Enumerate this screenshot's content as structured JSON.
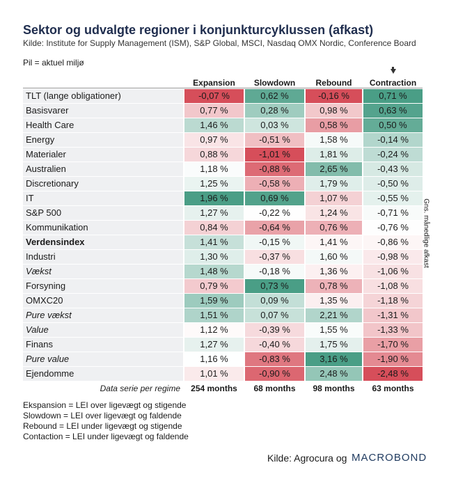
{
  "header": {
    "title": "Sektor og udvalgte regioner i konjunkturcyklussen (afkast)",
    "subtitle": "Kilde: Institute for Supply Management (ISM), S&P Global, MSCI, Nasdaq OMX Nordic, Conference Board",
    "arrow_note": "Pil = aktuel miljø"
  },
  "table": {
    "columns": [
      "Expansion",
      "Slowdown",
      "Rebound",
      "Contraction"
    ],
    "rows": [
      {
        "label": "TLT (lange obligationer)",
        "values": [
          "-0,07 %",
          "0,62 %",
          "-0,16 %",
          "0,71 %"
        ]
      },
      {
        "label": "Basisvarer",
        "values": [
          "0,77 %",
          "0,28 %",
          "0,98 %",
          "0,63 %"
        ]
      },
      {
        "label": "Health Care",
        "values": [
          "1,46 %",
          "0,03 %",
          "0,58 %",
          "0,50 %"
        ]
      },
      {
        "label": "Energy",
        "values": [
          "0,97 %",
          "-0,51 %",
          "1,58 %",
          "-0,14 %"
        ]
      },
      {
        "label": "Materialer",
        "values": [
          "0,88 %",
          "-1,01 %",
          "1,81 %",
          "-0,24 %"
        ]
      },
      {
        "label": "Australien",
        "values": [
          "1,18 %",
          "-0,88 %",
          "2,65 %",
          "-0,43 %"
        ]
      },
      {
        "label": "Discretionary",
        "values": [
          "1,25 %",
          "-0,58 %",
          "1,79 %",
          "-0,50 %"
        ]
      },
      {
        "label": "IT",
        "values": [
          "1,96 %",
          "0,69 %",
          "1,07 %",
          "-0,55 %"
        ]
      },
      {
        "label": "S&P 500",
        "values": [
          "1,27 %",
          "-0,22 %",
          "1,24 %",
          "-0,71 %"
        ]
      },
      {
        "label": "Kommunikation",
        "values": [
          "0,84 %",
          "-0,64 %",
          "0,76 %",
          "-0,76 %"
        ]
      },
      {
        "label": "Verdensindex",
        "style": "bold",
        "values": [
          "1,41 %",
          "-0,15 %",
          "1,41 %",
          "-0,86 %"
        ]
      },
      {
        "label": "Industri",
        "values": [
          "1,30 %",
          "-0,37 %",
          "1,60 %",
          "-0,98 %"
        ]
      },
      {
        "label": "Vækst",
        "style": "italic",
        "values": [
          "1,48 %",
          "-0,18 %",
          "1,36 %",
          "-1,06 %"
        ]
      },
      {
        "label": "Forsyning",
        "values": [
          "0,79 %",
          "0,73 %",
          "0,78 %",
          "-1,08 %"
        ]
      },
      {
        "label": "OMXC20",
        "values": [
          "1,59 %",
          "0,09 %",
          "1,35 %",
          "-1,18 %"
        ]
      },
      {
        "label": "Pure vækst",
        "style": "italic",
        "values": [
          "1,51 %",
          "0,07 %",
          "2,21 %",
          "-1,31 %"
        ]
      },
      {
        "label": "Value",
        "style": "italic",
        "values": [
          "1,12 %",
          "-0,39 %",
          "1,55 %",
          "-1,33 %"
        ]
      },
      {
        "label": "Finans",
        "values": [
          "1,27 %",
          "-0,40 %",
          "1,75 %",
          "-1,70 %"
        ]
      },
      {
        "label": "Pure value",
        "style": "italic",
        "values": [
          "1,16 %",
          "-0,83 %",
          "3,16 %",
          "-1,90 %"
        ]
      },
      {
        "label": "Ejendomme",
        "values": [
          "1,01 %",
          "-0,90 %",
          "2,48 %",
          "-2,48 %"
        ]
      }
    ],
    "footer": {
      "label": "Data serie per regime",
      "values": [
        "254 months",
        "68 months",
        "98 months",
        "63 months"
      ]
    },
    "current_column": 3,
    "side_label": "Gns. månedlige afkast"
  },
  "notes": [
    "Ekspansion = LEI over ligevægt og stigende",
    "Slowdown = LEI over ligevægt og faldende",
    "Rebound = LEI under ligevægt og stigende",
    "Contaction = LEI under ligevægt og faldende"
  ],
  "source": {
    "text": "Kilde: Agrocura og",
    "logo": "MACROBOND"
  }
}
